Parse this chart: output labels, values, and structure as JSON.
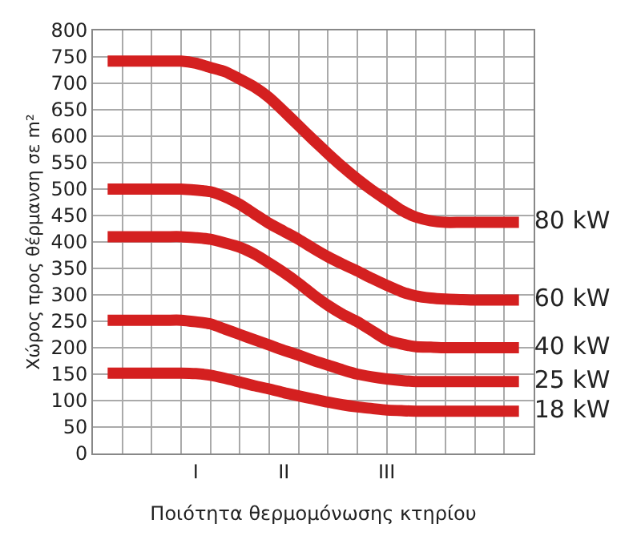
{
  "chart_data": {
    "type": "line",
    "xlabel": "Ποιότητα θερμομόνωσης κτηρίου",
    "ylabel": "Χώρος προς θέρμανση σε m²",
    "categories": [
      null,
      null,
      null,
      null,
      null,
      null,
      "I",
      null,
      null,
      null,
      null,
      null,
      "II",
      null,
      null,
      null,
      null,
      null,
      null,
      "III",
      null,
      null,
      null,
      null,
      null,
      null,
      null,
      null,
      null
    ],
    "series": [
      {
        "name": "80 kW",
        "color": "#d42020",
        "values": [
          742,
          742,
          742,
          742,
          742,
          742,
          738,
          730,
          722,
          708,
          693,
          673,
          647,
          620,
          593,
          567,
          542,
          519,
          498,
          479,
          460,
          447,
          440,
          437,
          437,
          437,
          437,
          437,
          437
        ]
      },
      {
        "name": "60 kW",
        "color": "#d42020",
        "values": [
          500,
          500,
          500,
          500,
          500,
          500,
          498,
          495,
          485,
          471,
          453,
          435,
          420,
          405,
          388,
          372,
          358,
          345,
          331,
          318,
          306,
          298,
          294,
          292,
          291,
          290,
          290,
          290,
          290
        ]
      },
      {
        "name": "40 kW",
        "color": "#d42020",
        "values": [
          410,
          410,
          410,
          410,
          410,
          410,
          408,
          405,
          398,
          390,
          377,
          360,
          342,
          322,
          300,
          280,
          263,
          249,
          232,
          215,
          207,
          202,
          201,
          200,
          200,
          200,
          200,
          200,
          200
        ]
      },
      {
        "name": "25 kW",
        "color": "#d42020",
        "values": [
          252,
          252,
          252,
          252,
          252,
          252,
          249,
          245,
          235,
          225,
          215,
          205,
          195,
          186,
          176,
          167,
          158,
          150,
          145,
          141,
          138,
          136,
          136,
          136,
          136,
          136,
          136,
          136,
          136
        ]
      },
      {
        "name": "18 kW",
        "color": "#d42020",
        "values": [
          152,
          152,
          152,
          152,
          152,
          152,
          151,
          148,
          142,
          135,
          128,
          122,
          115,
          109,
          103,
          97,
          92,
          88,
          85,
          82,
          81,
          80,
          80,
          80,
          80,
          80,
          80,
          80,
          80
        ]
      }
    ],
    "ylim": [
      0,
      800
    ],
    "yticks": [
      0,
      50,
      100,
      150,
      200,
      250,
      300,
      350,
      400,
      450,
      500,
      550,
      600,
      650,
      700,
      750,
      800
    ],
    "grid": true,
    "legend": false,
    "marker": "none",
    "line_style": "solid"
  }
}
